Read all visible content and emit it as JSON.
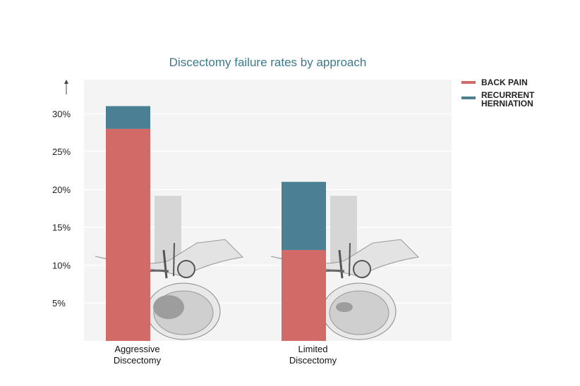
{
  "chart_data": {
    "type": "bar",
    "stacked": true,
    "title": "Discectomy failure rates by approach",
    "xlabel": "",
    "ylabel": "",
    "categories": [
      "Aggressive Discectomy",
      "Limited Discectomy"
    ],
    "category_lines": [
      [
        "Aggressive",
        "Discectomy"
      ],
      [
        "Limited",
        "Discectomy"
      ]
    ],
    "series": [
      {
        "name": "BACK PAIN",
        "color": "#d26a68",
        "values": [
          28,
          12
        ]
      },
      {
        "name": "RECURRENT HERNIATION",
        "color": "#4a7f94",
        "values": [
          3,
          9
        ]
      }
    ],
    "ylim": [
      0,
      34.5
    ],
    "yticks": [
      5,
      10,
      15,
      20,
      25,
      30
    ],
    "ytick_labels": [
      "5%",
      "10%",
      "15%",
      "20%",
      "25%",
      "30%"
    ],
    "grid": true,
    "legend_position": "right",
    "legend_lines": [
      [
        "BACK PAIN"
      ],
      [
        "RECURRENT",
        "HERNIATION"
      ]
    ],
    "background": "#f4f4f4",
    "illustration": "spine-cross-section"
  }
}
